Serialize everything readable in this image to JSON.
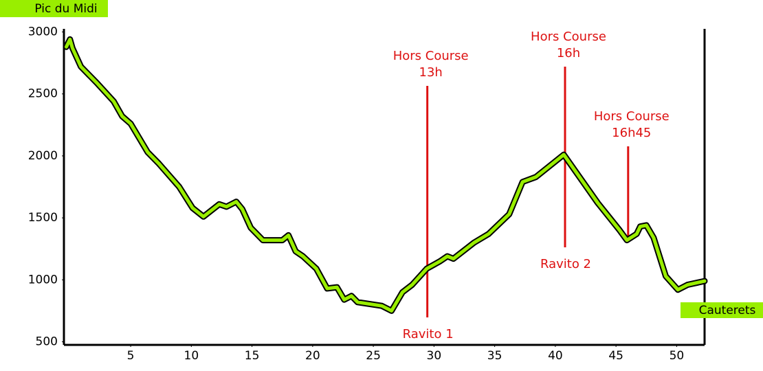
{
  "chart_data": {
    "type": "line",
    "start_label": "Pic du Midi",
    "end_label": "Cauterets",
    "color": "#99ee00",
    "outline_color": "#000000",
    "annotation_color": "#dd1111",
    "label_box_color": "#99ee00",
    "x": [
      -0.3,
      0,
      0.2,
      0.9,
      2.2,
      3.6,
      4.3,
      5,
      6.4,
      7.3,
      9,
      10.1,
      11,
      12.3,
      12.9,
      13.7,
      14.2,
      14.9,
      15.9,
      17.5,
      18.0,
      18.6,
      19.2,
      20.3,
      21.2,
      22.0,
      22.6,
      23.2,
      23.7,
      25.7,
      26.5,
      27.4,
      28.2,
      29.4,
      30.5,
      31.1,
      31.6,
      33.3,
      34.5,
      36.2,
      37.3,
      38.4,
      40.7,
      43.5,
      45.3,
      45.9,
      46.7,
      47.0,
      47.5,
      48.1,
      49.1,
      50.1,
      50.9,
      52.3
    ],
    "values": [
      2880,
      2940,
      2870,
      2720,
      2590,
      2440,
      2320,
      2260,
      2030,
      1940,
      1750,
      1580,
      1510,
      1610,
      1590,
      1630,
      1570,
      1420,
      1320,
      1320,
      1360,
      1230,
      1190,
      1090,
      930,
      940,
      840,
      870,
      820,
      790,
      750,
      900,
      960,
      1090,
      1150,
      1190,
      1170,
      1300,
      1370,
      1530,
      1790,
      1830,
      2010,
      1620,
      1400,
      1320,
      1370,
      1430,
      1440,
      1340,
      1030,
      920,
      960,
      990
    ],
    "xlim": [
      -0.5,
      52.3
    ],
    "ylim": [
      475,
      3025
    ],
    "xticks": [
      5,
      10,
      15,
      20,
      25,
      30,
      35,
      40,
      45,
      50
    ],
    "yticks": [
      500,
      1000,
      1500,
      2000,
      2500,
      3000
    ],
    "annotations": [
      {
        "x": 29.45,
        "text": [
          "Hors Course",
          "13h"
        ],
        "below": "Ravito 1"
      },
      {
        "x": 40.8,
        "text": [
          "Hors Course",
          "16h"
        ],
        "below": "Ravito 2"
      },
      {
        "x": 46.0,
        "text": [
          "Hors Course",
          "16h45"
        ]
      }
    ]
  }
}
